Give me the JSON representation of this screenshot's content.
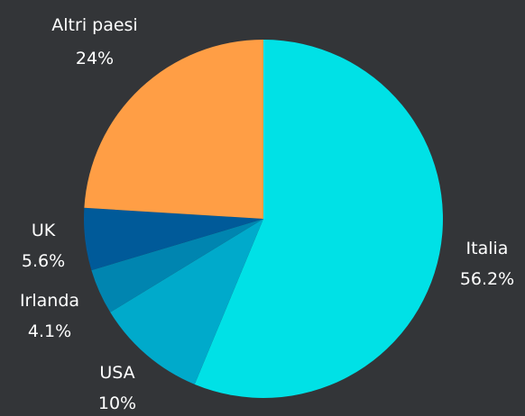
{
  "chart_data": {
    "type": "pie",
    "title": "",
    "slices": [
      {
        "label": "Italia",
        "value": 56.2,
        "value_label": "56.2%",
        "color": "#00E1E6"
      },
      {
        "label": "USA",
        "value": 10,
        "value_label": "10%",
        "color": "#00AACB"
      },
      {
        "label": "Irlanda",
        "value": 4.1,
        "value_label": "4.1%",
        "color": "#0085B0"
      },
      {
        "label": "UK",
        "value": 5.6,
        "value_label": "5.6%",
        "color": "#005A99"
      },
      {
        "label": "Altri paesi",
        "value": 24,
        "value_label": "24%",
        "color": "#FF9E45"
      }
    ],
    "start": "12 o'clock",
    "direction": "clockwise",
    "legend": "none",
    "labels": "outside"
  },
  "colors": {
    "background": "#333538",
    "label_text": "#FFFFFF"
  }
}
